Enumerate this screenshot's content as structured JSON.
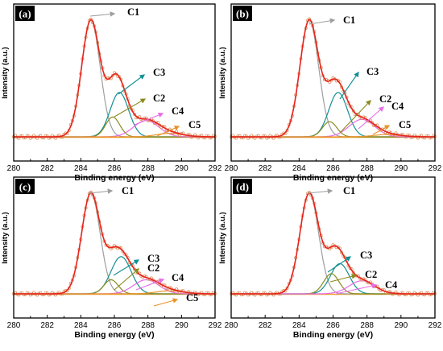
{
  "chart_data": [
    {
      "panel_label": "(a)",
      "type": "line",
      "xlabel": "Binding energy (eV)",
      "ylabel": "Intensity (a.u.)",
      "xlim": [
        280,
        292
      ],
      "x_ticks": [
        "280",
        "282",
        "284",
        "286",
        "288",
        "290",
        "292"
      ],
      "components": [
        {
          "name": "C1",
          "center": 284.6,
          "height": 1.0,
          "sigma": 0.55,
          "color": "#9e9e9e"
        },
        {
          "name": "C3",
          "center": 286.3,
          "height": 0.38,
          "sigma": 0.55,
          "color": "#138f93"
        },
        {
          "name": "C2",
          "center": 285.9,
          "height": 0.17,
          "sigma": 0.42,
          "color": "#8a8a1e"
        },
        {
          "name": "C4",
          "center": 287.9,
          "height": 0.14,
          "sigma": 0.75,
          "color": "#e86be6"
        },
        {
          "name": "C5",
          "center": 289.3,
          "height": 0.03,
          "sigma": 0.8,
          "color": "#e8922a"
        }
      ]
    },
    {
      "panel_label": "(b)",
      "type": "line",
      "xlabel": "Binding energy (eV)",
      "ylabel": "Intensity (a.u.)",
      "xlim": [
        280,
        292
      ],
      "x_ticks": [
        "280",
        "282",
        "284",
        "286",
        "288",
        "290",
        "292"
      ],
      "components": [
        {
          "name": "C1",
          "center": 284.6,
          "height": 1.0,
          "sigma": 0.55,
          "color": "#9e9e9e"
        },
        {
          "name": "C3",
          "center": 286.3,
          "height": 0.38,
          "sigma": 0.55,
          "color": "#138f93"
        },
        {
          "name": "C2",
          "center": 285.8,
          "height": 0.13,
          "sigma": 0.42,
          "color": "#8a8a1e"
        },
        {
          "name": "C4",
          "center": 287.7,
          "height": 0.15,
          "sigma": 0.75,
          "color": "#e86be6"
        },
        {
          "name": "C5",
          "center": 289.2,
          "height": 0.02,
          "sigma": 0.8,
          "color": "#e8922a"
        }
      ]
    },
    {
      "panel_label": "(c)",
      "type": "line",
      "xlabel": "Binding energy (eV)",
      "ylabel": "Intensity (a.u.)",
      "xlim": [
        280,
        292
      ],
      "x_ticks": [
        "280",
        "282",
        "284",
        "286",
        "288",
        "290",
        "292"
      ],
      "components": [
        {
          "name": "C1",
          "center": 284.6,
          "height": 1.0,
          "sigma": 0.55,
          "color": "#9e9e9e"
        },
        {
          "name": "C3",
          "center": 286.4,
          "height": 0.37,
          "sigma": 0.6,
          "color": "#138f93"
        },
        {
          "name": "C2",
          "center": 285.8,
          "height": 0.14,
          "sigma": 0.42,
          "color": "#8a8a1e"
        },
        {
          "name": "C4",
          "center": 287.9,
          "height": 0.14,
          "sigma": 0.75,
          "color": "#e86be6"
        },
        {
          "name": "C5",
          "center": 289.3,
          "height": 0.03,
          "sigma": 0.8,
          "color": "#e8922a"
        }
      ]
    },
    {
      "panel_label": "(d)",
      "type": "line",
      "xlabel": "Binding energy (eV)",
      "ylabel": "Intensity (a.u.)",
      "xlim": [
        280,
        292
      ],
      "x_ticks": [
        "280",
        "282",
        "284",
        "286",
        "288",
        "290",
        "292"
      ],
      "components": [
        {
          "name": "C1",
          "center": 284.6,
          "height": 1.0,
          "sigma": 0.55,
          "color": "#9e9e9e"
        },
        {
          "name": "C3",
          "center": 286.4,
          "height": 0.3,
          "sigma": 0.55,
          "color": "#138f93"
        },
        {
          "name": "C2",
          "center": 285.9,
          "height": 0.2,
          "sigma": 0.45,
          "color": "#8a8a1e"
        },
        {
          "name": "C4",
          "center": 287.7,
          "height": 0.13,
          "sigma": 0.75,
          "color": "#e86be6"
        }
      ]
    }
  ],
  "colors": {
    "envelope": "#e8231c",
    "raw_points": "#d98a5a",
    "baseline": "#f0a020",
    "panel_label_bg": "#000000"
  }
}
